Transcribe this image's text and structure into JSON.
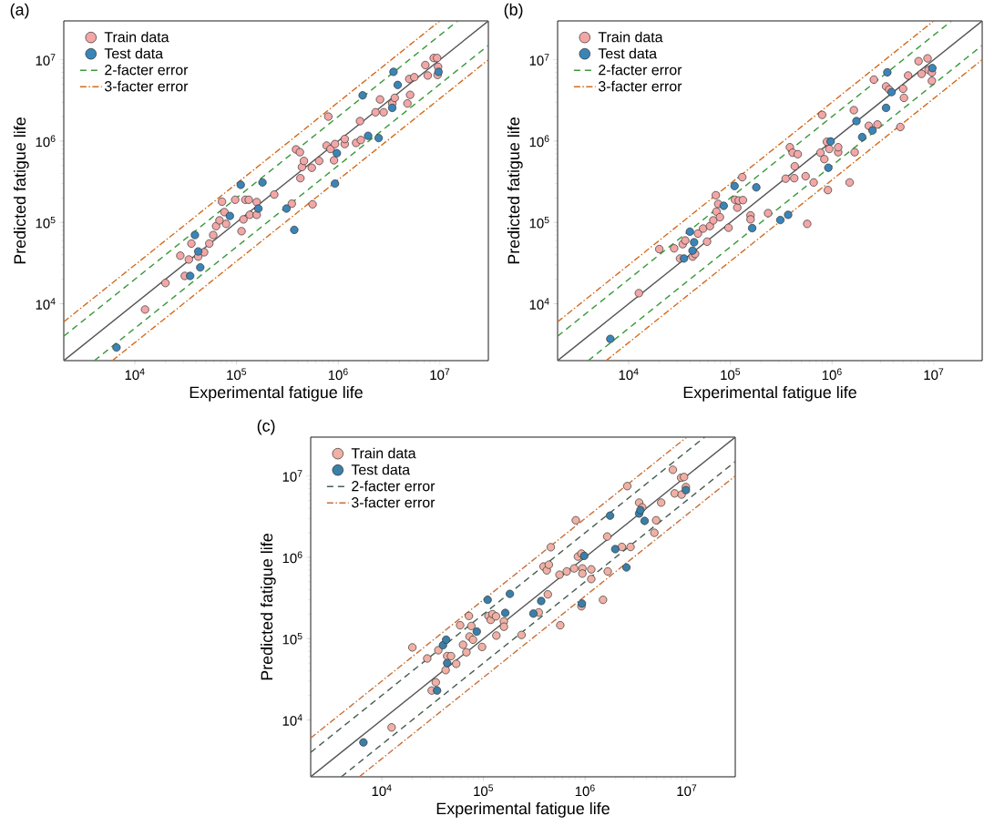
{
  "chart_data": [
    {
      "type": "scatter",
      "title": "(a)",
      "xlabel": "Experimental fatigue life",
      "ylabel": "Predicted fatigue life",
      "log": "xy",
      "xlim": [
        2000,
        30000000
      ],
      "ylim": [
        2000,
        30000000
      ],
      "xticks": [
        {
          "value": 10000,
          "label": "10$^{4}$"
        },
        {
          "value": 100000,
          "label": "10$^{5}$"
        },
        {
          "value": 1000000,
          "label": "10$^{6}$"
        },
        {
          "value": 10000000,
          "label": "10$^{7}$"
        }
      ],
      "yticks": [
        {
          "value": 10000,
          "label": "10$^{4}$"
        },
        {
          "value": 100000,
          "label": "10$^{5}$"
        },
        {
          "value": 1000000,
          "label": "10$^{6}$"
        },
        {
          "value": 10000000,
          "label": "10$^{7}$"
        }
      ],
      "legend": "top left",
      "marker": "circle",
      "series": [
        {
          "name": "Train data",
          "color": "#f2a7a6",
          "x": [
            12600,
            20000,
            28000,
            31000,
            34000,
            36000,
            42000,
            48000,
            54000,
            59000,
            63000,
            68000,
            72000,
            76000,
            79000,
            97000,
            112000,
            117000,
            122000,
            132000,
            135000,
            158000,
            158000,
            235000,
            350000,
            385000,
            420000,
            425000,
            440000,
            460000,
            550000,
            560000,
            650000,
            770000,
            800000,
            840000,
            910000,
            930000,
            1160000,
            1160000,
            1500000,
            1670000,
            1640000,
            2330000,
            2580000,
            2800000,
            3400000,
            3600000,
            4800000,
            5100000,
            5000000,
            5600000,
            7200000,
            7600000,
            8700000,
            9400000,
            9600000,
            9500000
          ],
          "values": [
            8500,
            18000,
            39000,
            22000,
            35000,
            55000,
            38000,
            43000,
            55000,
            70000,
            90000,
            106000,
            180000,
            134000,
            96000,
            190000,
            78000,
            109000,
            190000,
            190000,
            124000,
            124000,
            178000,
            220000,
            170000,
            790000,
            730000,
            350000,
            480000,
            570000,
            470000,
            167000,
            570000,
            880000,
            2000000,
            800000,
            580000,
            920000,
            920000,
            1060000,
            950000,
            1030000,
            1760000,
            2260000,
            3250000,
            2260000,
            2900000,
            3400000,
            2900000,
            3700000,
            5800000,
            6100000,
            8600000,
            6400000,
            10500000,
            10500000,
            8200000,
            6500000
          ]
        },
        {
          "name": "Test data",
          "color": "#3a85b8",
          "x": [
            6600,
            35000,
            39000,
            42000,
            44000,
            86000,
            110000,
            164000,
            180000,
            310000,
            370000,
            930000,
            970000,
            1740000,
            1970000,
            2500000,
            3400000,
            3500000,
            3850000,
            9700000
          ],
          "values": [
            2900,
            22000,
            70000,
            44000,
            28000,
            120000,
            290000,
            148000,
            310000,
            148000,
            81000,
            300000,
            710000,
            3650000,
            1160000,
            1090000,
            2560000,
            7100000,
            4900000,
            7100000
          ]
        },
        {
          "name": "2-facter error",
          "type": "line",
          "marker": "none",
          "line_style": "dashed",
          "color": "#3a9a3a",
          "x": [
            2000,
            15000000
          ],
          "values": [
            4000,
            30000000
          ]
        },
        {
          "type": "line",
          "marker": "none",
          "line_style": "dashed",
          "color": "#3a9a3a",
          "x": [
            4000,
            30000000
          ],
          "values": [
            2000,
            15000000
          ]
        },
        {
          "name": "3-facter error",
          "type": "line",
          "marker": "none",
          "line_style": "dashdot",
          "color": "#d26c1e",
          "x": [
            2000,
            10000000
          ],
          "values": [
            6000,
            30000000
          ]
        },
        {
          "type": "line",
          "marker": "none",
          "line_style": "dashdot",
          "color": "#d26c1e",
          "x": [
            6000,
            30000000
          ],
          "values": [
            2000,
            10000000
          ]
        },
        {
          "type": "line",
          "marker": "none",
          "line_style": "solid",
          "color": "#555555",
          "x": [
            2000,
            30000000
          ],
          "values": [
            2000,
            30000000
          ]
        }
      ]
    },
    {
      "type": "scatter",
      "title": "(b)",
      "xlabel": "Experimental fatigue life",
      "ylabel": "Predicted fatigue life",
      "log": "xy",
      "xlim": [
        2000,
        30000000
      ],
      "ylim": [
        2000,
        30000000
      ],
      "xticks": [
        {
          "value": 10000,
          "label": "10$^{4}$"
        },
        {
          "value": 100000,
          "label": "10$^{5}$"
        },
        {
          "value": 1000000,
          "label": "10$^{6}$"
        },
        {
          "value": 10000000,
          "label": "10$^{7}$"
        }
      ],
      "yticks": [
        {
          "value": 10000,
          "label": "10$^{4}$"
        },
        {
          "value": 100000,
          "label": "10$^{5}$"
        },
        {
          "value": 1000000,
          "label": "10$^{6}$"
        },
        {
          "value": 10000000,
          "label": "10$^{7}$"
        }
      ],
      "legend": "top left",
      "marker": "circle",
      "series": [
        {
          "name": "Train data",
          "color": "#f2a7a6",
          "x": [
            12600,
            20000,
            28000,
            32000,
            34000,
            36000,
            42500,
            45000,
            48000,
            54000,
            59000,
            63000,
            68000,
            72000,
            73000,
            76000,
            79000,
            96000,
            111000,
            117000,
            121000,
            133000,
            131000,
            158000,
            158000,
            235000,
            350000,
            385000,
            410000,
            425000,
            430000,
            460000,
            550000,
            570000,
            660000,
            770000,
            800000,
            840000,
            890000,
            910000,
            940000,
            1150000,
            1150000,
            1490000,
            1640000,
            1670000,
            2300000,
            2580000,
            2800000,
            3400000,
            3650000,
            4700000,
            5000000,
            5100000,
            5600000,
            7100000,
            7600000,
            8700000,
            8900000,
            9600000,
            9600000
          ],
          "values": [
            13500,
            47000,
            48000,
            36000,
            54000,
            60000,
            38000,
            41000,
            73000,
            84000,
            58000,
            90000,
            106000,
            216000,
            136000,
            169000,
            116000,
            86000,
            190000,
            152000,
            186000,
            188000,
            360000,
            122000,
            109000,
            130000,
            345000,
            840000,
            720000,
            350000,
            490000,
            690000,
            370000,
            96000,
            310000,
            720000,
            2100000,
            600000,
            980000,
            250000,
            800000,
            730000,
            840000,
            310000,
            2400000,
            730000,
            1540000,
            5700000,
            1600000,
            4700000,
            4300000,
            1490000,
            4400000,
            3400000,
            6400000,
            9600000,
            6700000,
            10400000,
            7500000,
            5500000,
            7000000
          ]
        },
        {
          "name": "Test data",
          "color": "#3a85b8",
          "x": [
            6600,
            35000,
            40000,
            42500,
            44000,
            86000,
            110000,
            164000,
            180000,
            310000,
            370000,
            920000,
            970000,
            1740000,
            1980000,
            2500000,
            3400000,
            3500000,
            3850000,
            9700000
          ],
          "values": [
            3700,
            36000,
            77000,
            45000,
            57000,
            160000,
            280000,
            85000,
            270000,
            107000,
            124000,
            470000,
            990000,
            1760000,
            1120000,
            1350000,
            2560000,
            7000000,
            4000000,
            7900000
          ]
        },
        {
          "name": "2-facter error",
          "type": "line",
          "marker": "none",
          "line_style": "dashed",
          "color": "#3a9a3a",
          "x": [
            2000,
            15000000
          ],
          "values": [
            4000,
            30000000
          ]
        },
        {
          "type": "line",
          "marker": "none",
          "line_style": "dashed",
          "color": "#3a9a3a",
          "x": [
            4000,
            30000000
          ],
          "values": [
            2000,
            15000000
          ]
        },
        {
          "name": "3-facter error",
          "type": "line",
          "marker": "none",
          "line_style": "dashdot",
          "color": "#d26c1e",
          "x": [
            2000,
            10000000
          ],
          "values": [
            6000,
            30000000
          ]
        },
        {
          "type": "line",
          "marker": "none",
          "line_style": "dashdot",
          "color": "#d26c1e",
          "x": [
            6000,
            30000000
          ],
          "values": [
            2000,
            10000000
          ]
        },
        {
          "type": "line",
          "marker": "none",
          "line_style": "solid",
          "color": "#555555",
          "x": [
            2000,
            30000000
          ],
          "values": [
            2000,
            30000000
          ]
        }
      ]
    },
    {
      "type": "scatter",
      "title": "(c)",
      "xlabel": "Experimental fatigue life",
      "ylabel": "Predicted fatigue life",
      "log": "xy",
      "xlim": [
        2000,
        30000000
      ],
      "ylim": [
        2000,
        30000000
      ],
      "xticks": [
        {
          "value": 10000,
          "label": "10$^{4}$"
        },
        {
          "value": 100000,
          "label": "10$^{5}$"
        },
        {
          "value": 1000000,
          "label": "10$^{6}$"
        },
        {
          "value": 10000000,
          "label": "10$^{7}$"
        }
      ],
      "yticks": [
        {
          "value": 10000,
          "label": "10$^{4}$"
        },
        {
          "value": 100000,
          "label": "10$^{5}$"
        },
        {
          "value": 1000000,
          "label": "10$^{6}$"
        },
        {
          "value": 10000000,
          "label": "10$^{7}$"
        }
      ],
      "legend": "top left",
      "marker": "circle",
      "series": [
        {
          "name": "Train data",
          "color": "#f0b0a4",
          "x": [
            12500,
            20000,
            28000,
            31000,
            34000,
            36000,
            42500,
            44000,
            48000,
            54000,
            59000,
            63000,
            68000,
            72000,
            73000,
            76000,
            79000,
            97000,
            112000,
            118000,
            123000,
            133000,
            134000,
            159000,
            159000,
            237000,
            350000,
            390000,
            420000,
            430000,
            440000,
            460000,
            560000,
            570000,
            660000,
            780000,
            810000,
            850000,
            920000,
            920000,
            940000,
            940000,
            1150000,
            1150000,
            1500000,
            1650000,
            1670000,
            2300000,
            2600000,
            2800000,
            3400000,
            3650000,
            4800000,
            5000000,
            5600000,
            7300000,
            7600000,
            8800000,
            9400000,
            8900000,
            9800000
          ],
          "values": [
            8100,
            78000,
            57000,
            23000,
            29000,
            72000,
            41000,
            61000,
            61000,
            49000,
            146000,
            84000,
            68000,
            190000,
            106000,
            143000,
            97000,
            79000,
            190000,
            170000,
            200000,
            188000,
            109000,
            163000,
            140000,
            111000,
            210000,
            770000,
            690000,
            350000,
            810000,
            1330000,
            610000,
            146000,
            670000,
            730000,
            2850000,
            1020000,
            1110000,
            250000,
            730000,
            630000,
            710000,
            540000,
            300000,
            1800000,
            670000,
            1340000,
            7500000,
            1340000,
            4700000,
            4100000,
            2000000,
            2850000,
            4700000,
            11900000,
            6100000,
            9500000,
            9700000,
            5900000,
            7300000
          ]
        },
        {
          "name": "Test data",
          "color": "#3a7fa8",
          "x": [
            6600,
            35000,
            40000,
            43000,
            44000,
            86000,
            110000,
            164000,
            182000,
            310000,
            370000,
            930000,
            980000,
            1760000,
            1980000,
            2550000,
            3400000,
            3500000,
            3850000,
            9800000
          ],
          "values": [
            5300,
            23000,
            83000,
            97000,
            50000,
            122000,
            300000,
            207000,
            355000,
            203000,
            290000,
            270000,
            1040000,
            3250000,
            1260000,
            750000,
            3450000,
            3800000,
            2800000,
            6700000
          ]
        },
        {
          "name": "2-facter error",
          "type": "line",
          "marker": "none",
          "line_style": "dashed",
          "color": "#475f50",
          "x": [
            2000,
            15000000
          ],
          "values": [
            4000,
            30000000
          ]
        },
        {
          "type": "line",
          "marker": "none",
          "line_style": "dashed",
          "color": "#475f50",
          "x": [
            4000,
            30000000
          ],
          "values": [
            2000,
            15000000
          ]
        },
        {
          "name": "3-facter error",
          "type": "line",
          "marker": "none",
          "line_style": "dashdot",
          "color": "#c8703a",
          "x": [
            2000,
            10000000
          ],
          "values": [
            6000,
            30000000
          ]
        },
        {
          "type": "line",
          "marker": "none",
          "line_style": "dashdot",
          "color": "#c8703a",
          "x": [
            6000,
            30000000
          ],
          "values": [
            2000,
            10000000
          ]
        },
        {
          "type": "line",
          "marker": "none",
          "line_style": "solid",
          "color": "#555555",
          "x": [
            2000,
            30000000
          ],
          "values": [
            2000,
            30000000
          ]
        }
      ]
    }
  ]
}
